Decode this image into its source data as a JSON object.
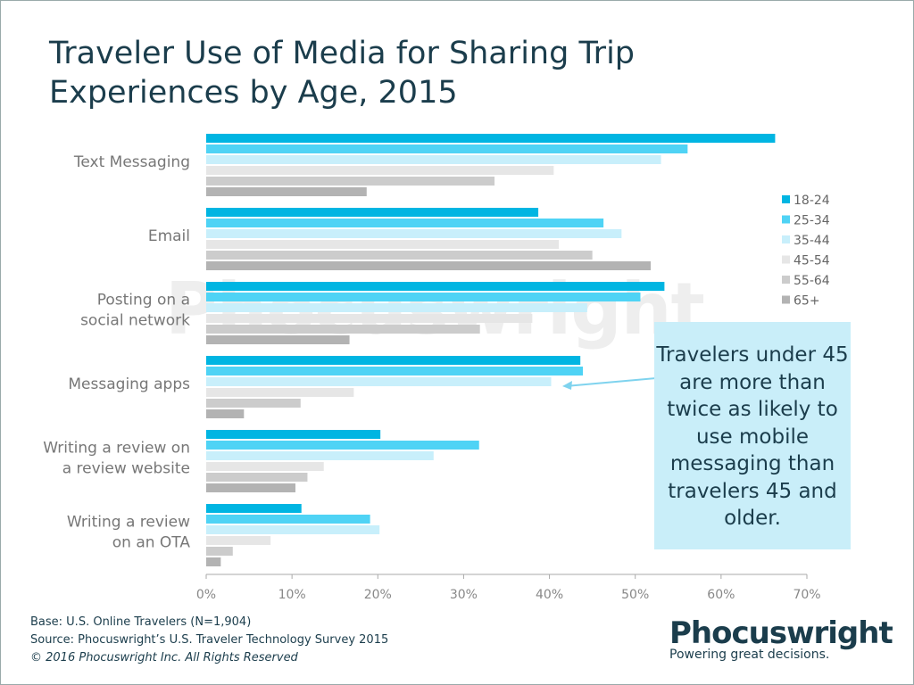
{
  "chart_data": {
    "type": "bar",
    "orientation": "horizontal",
    "title": [
      "Traveler Use of Media for Sharing Trip",
      "Experiences by Age, 2015"
    ],
    "categories": [
      [
        "Text Messaging"
      ],
      [
        "Email"
      ],
      [
        "Posting on a",
        "social network"
      ],
      [
        "Messaging apps"
      ],
      [
        "Writing a review on",
        "a review website"
      ],
      [
        "Writing a review",
        "on an OTA"
      ]
    ],
    "series": [
      {
        "name": "18-24",
        "color": "#00b5e2",
        "values": [
          66.3,
          38.7,
          53.4,
          43.6,
          20.3,
          11.1
        ]
      },
      {
        "name": "25-34",
        "color": "#4fd3f5",
        "values": [
          56.1,
          46.3,
          50.6,
          43.9,
          31.8,
          19.1
        ]
      },
      {
        "name": "35-44",
        "color": "#c8effb",
        "values": [
          53.0,
          48.4,
          44.4,
          40.2,
          26.5,
          20.2
        ]
      },
      {
        "name": "45-54",
        "color": "#e6e6e6",
        "values": [
          40.5,
          41.1,
          38.0,
          17.2,
          13.7,
          7.5
        ]
      },
      {
        "name": "55-64",
        "color": "#cccccc",
        "values": [
          33.6,
          45.0,
          31.9,
          11.0,
          11.8,
          3.1
        ]
      },
      {
        "name": "65+",
        "color": "#b3b3b3",
        "values": [
          18.7,
          51.8,
          16.7,
          4.4,
          10.4,
          1.7
        ]
      }
    ],
    "xlim": [
      0,
      70
    ],
    "xticks": [
      "0%",
      "10%",
      "20%",
      "30%",
      "40%",
      "50%",
      "60%",
      "70%"
    ],
    "legend_position": "right",
    "grid": false,
    "annotation": "Travelers under 45 are more than twice as likely to use mobile messaging than travelers 45 and older."
  },
  "watermark": "Phocuswright",
  "footer": [
    "Base: U.S. Online Travelers (N=1,904)",
    "Source: Phocuswright’s U.S. Traveler Technology Survey 2015",
    "© 2016 Phocuswright Inc. All Rights Reserved"
  ],
  "logo": {
    "name": "Phocuswright",
    "tagline": "Powering great decisions."
  }
}
